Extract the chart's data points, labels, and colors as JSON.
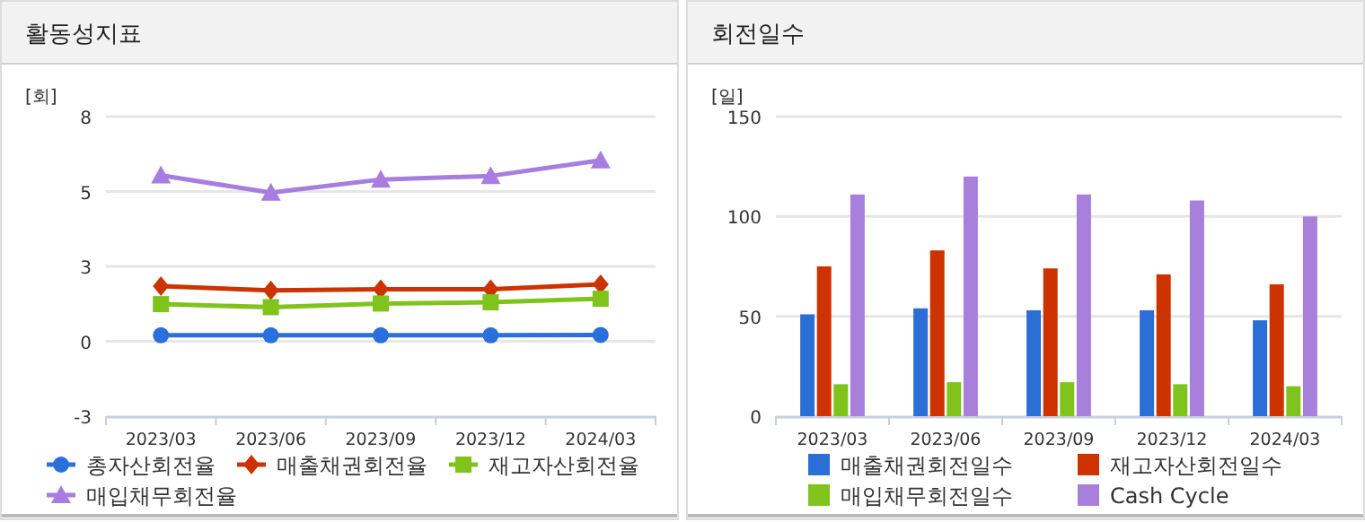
{
  "chart_data": [
    {
      "type": "line",
      "title": "활동성지표",
      "ylabel": "[회]",
      "categories": [
        "2023/03",
        "2023/06",
        "2023/09",
        "2023/12",
        "2024/03"
      ],
      "ylim": [
        -2.5,
        7.5
      ],
      "yticks": [
        {
          "value": 7.5,
          "label": "8"
        },
        5,
        {
          "value": 2.5,
          "label": "3"
        },
        0,
        {
          "value": -2.5,
          "label": "-3"
        }
      ],
      "grid": "y",
      "legend": "bottom",
      "line_style": "solid",
      "series": [
        {
          "name": "총자산회전율",
          "color": "#2a6fdb",
          "marker": "circle",
          "values": [
            0.2,
            0.2,
            0.2,
            0.2,
            0.21
          ]
        },
        {
          "name": "매출채권회전율",
          "color": "#cc3300",
          "marker": "diamond",
          "values": [
            1.84,
            1.7,
            1.74,
            1.74,
            1.9
          ]
        },
        {
          "name": "재고자산회전율",
          "color": "#7fc31c",
          "marker": "square",
          "values": [
            1.24,
            1.14,
            1.26,
            1.3,
            1.42
          ]
        },
        {
          "name": "매입채무회전율",
          "color": "#a77de0",
          "marker": "triangle",
          "values": [
            5.54,
            4.96,
            5.4,
            5.52,
            6.04
          ]
        }
      ]
    },
    {
      "type": "bar",
      "title": "회전일수",
      "ylabel": "[일]",
      "categories": [
        "2023/03",
        "2023/06",
        "2023/09",
        "2023/12",
        "2024/03"
      ],
      "ylim": [
        0,
        150
      ],
      "yticks": [
        0,
        50,
        100,
        150
      ],
      "grid": "y",
      "legend": "bottom",
      "series": [
        {
          "name": "매출채권회전일수",
          "color": "#2b6fd6",
          "values": [
            51,
            54,
            53,
            53,
            48
          ]
        },
        {
          "name": "재고자산회전일수",
          "color": "#cc3300",
          "values": [
            75,
            83,
            74,
            71,
            66
          ]
        },
        {
          "name": "매입채무회전일수",
          "color": "#80c31c",
          "values": [
            16,
            17,
            17,
            16,
            15
          ]
        },
        {
          "name": "Cash Cycle",
          "color": "#a97fdc",
          "values": [
            111,
            120,
            111,
            108,
            100
          ]
        }
      ]
    }
  ]
}
